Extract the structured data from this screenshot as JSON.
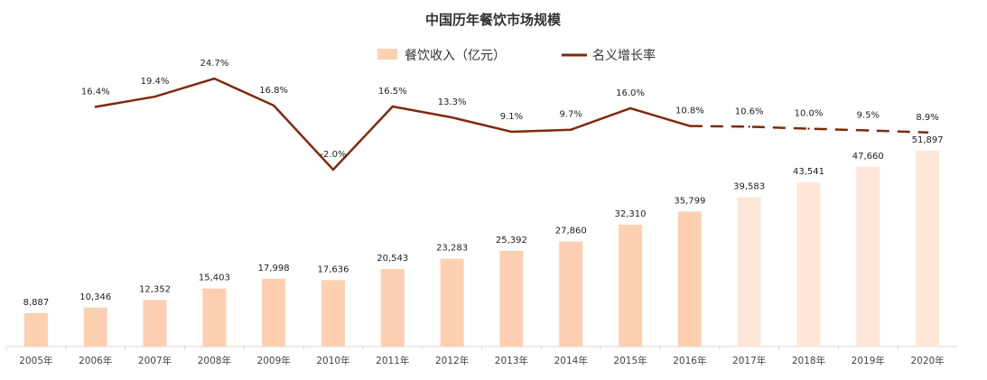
{
  "chart_data": {
    "type": "bar+line",
    "title": "中国历年餐饮市场规模",
    "categories": [
      "2005年",
      "2006年",
      "2007年",
      "2008年",
      "2009年",
      "2010年",
      "2011年",
      "2012年",
      "2013年",
      "2014年",
      "2015年",
      "2016年",
      "2017年",
      "2018年",
      "2019年",
      "2020年"
    ],
    "series": [
      {
        "name": "餐饮收入（亿元）",
        "type": "bar",
        "values": [
          8887,
          10346,
          12352,
          15403,
          17998,
          17636,
          20543,
          23283,
          25392,
          27860,
          32310,
          35799,
          39583,
          43541,
          47660,
          51897
        ],
        "labels": [
          "8,887",
          "10,346",
          "12,352",
          "15,403",
          "17,998",
          "17,636",
          "20,543",
          "23,283",
          "25,392",
          "27,860",
          "32,310",
          "35,799",
          "39,583",
          "43,541",
          "47,660",
          "51,897"
        ],
        "forecast_from": "2017年"
      },
      {
        "name": "名义增长率",
        "type": "line",
        "unit": "%",
        "values": [
          null,
          16.4,
          19.4,
          24.7,
          16.8,
          -2.0,
          16.5,
          13.3,
          9.1,
          9.7,
          16.0,
          10.8,
          10.6,
          10.0,
          9.5,
          8.9
        ],
        "labels": [
          "",
          "16.4%",
          "19.4%",
          "24.7%",
          "16.8%",
          "-2.0%",
          "16.5%",
          "13.3%",
          "9.1%",
          "9.7%",
          "16.0%",
          "10.8%",
          "10.6%",
          "10.0%",
          "9.5%",
          "8.9%"
        ],
        "dashed_from": "2016年"
      }
    ],
    "legend": "top-center",
    "grid": false,
    "colors": {
      "bar": "#FDD0B2",
      "bar_forecast": "#FEE7D8",
      "line": "#7E2A0C",
      "axis": "#D9D9D9"
    }
  }
}
